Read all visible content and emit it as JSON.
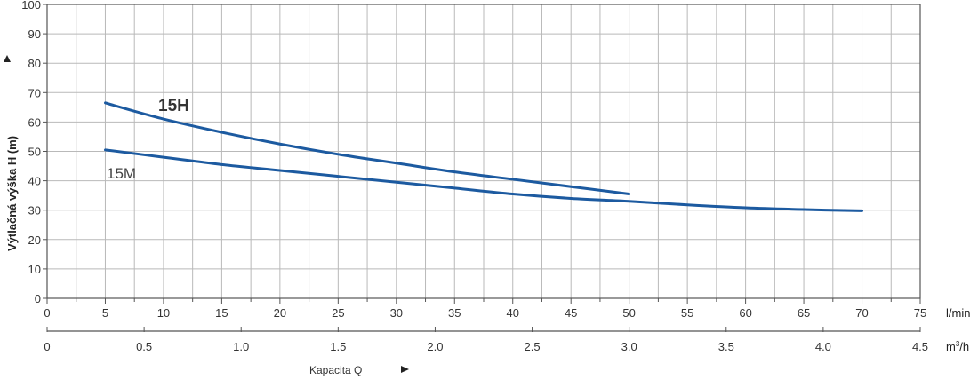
{
  "chart_data": {
    "type": "line",
    "ylabel": "Výtlačná výška H (m)",
    "xlabel": "Kapacita Q",
    "x_unit": "l/min",
    "x2_unit_base": "m",
    "x2_unit_exp": "3",
    "x2_unit_tail": "/h",
    "xlim": [
      0,
      75
    ],
    "ylim": [
      0,
      100
    ],
    "grid": true,
    "y_ticks": [
      "0",
      "10",
      "20",
      "30",
      "40",
      "50",
      "60",
      "70",
      "80",
      "90",
      "100"
    ],
    "x_ticks": [
      "0",
      "5",
      "10",
      "15",
      "20",
      "25",
      "30",
      "35",
      "40",
      "45",
      "50",
      "55",
      "60",
      "65",
      "70",
      "75"
    ],
    "x2_ticks": [
      "0",
      "0.5",
      "1.0",
      "1.5",
      "2.0",
      "2.5",
      "3.0",
      "3.5",
      "4.0",
      "4.5"
    ],
    "series": [
      {
        "name": "15H",
        "color": "#1c5aa0",
        "x": [
          5,
          10,
          15,
          20,
          25,
          30,
          35,
          40,
          45,
          50
        ],
        "y": [
          66.5,
          61,
          56.5,
          52.5,
          49,
          46,
          43,
          40.5,
          38,
          35.5
        ]
      },
      {
        "name": "15M",
        "color": "#1c5aa0",
        "x": [
          5,
          10,
          15,
          20,
          25,
          30,
          35,
          40,
          45,
          50,
          55,
          60,
          65,
          70
        ],
        "y": [
          50.5,
          48,
          45.5,
          43.5,
          41.5,
          39.5,
          37.5,
          35.5,
          34,
          33,
          31.8,
          30.8,
          30.2,
          29.8
        ]
      }
    ]
  }
}
